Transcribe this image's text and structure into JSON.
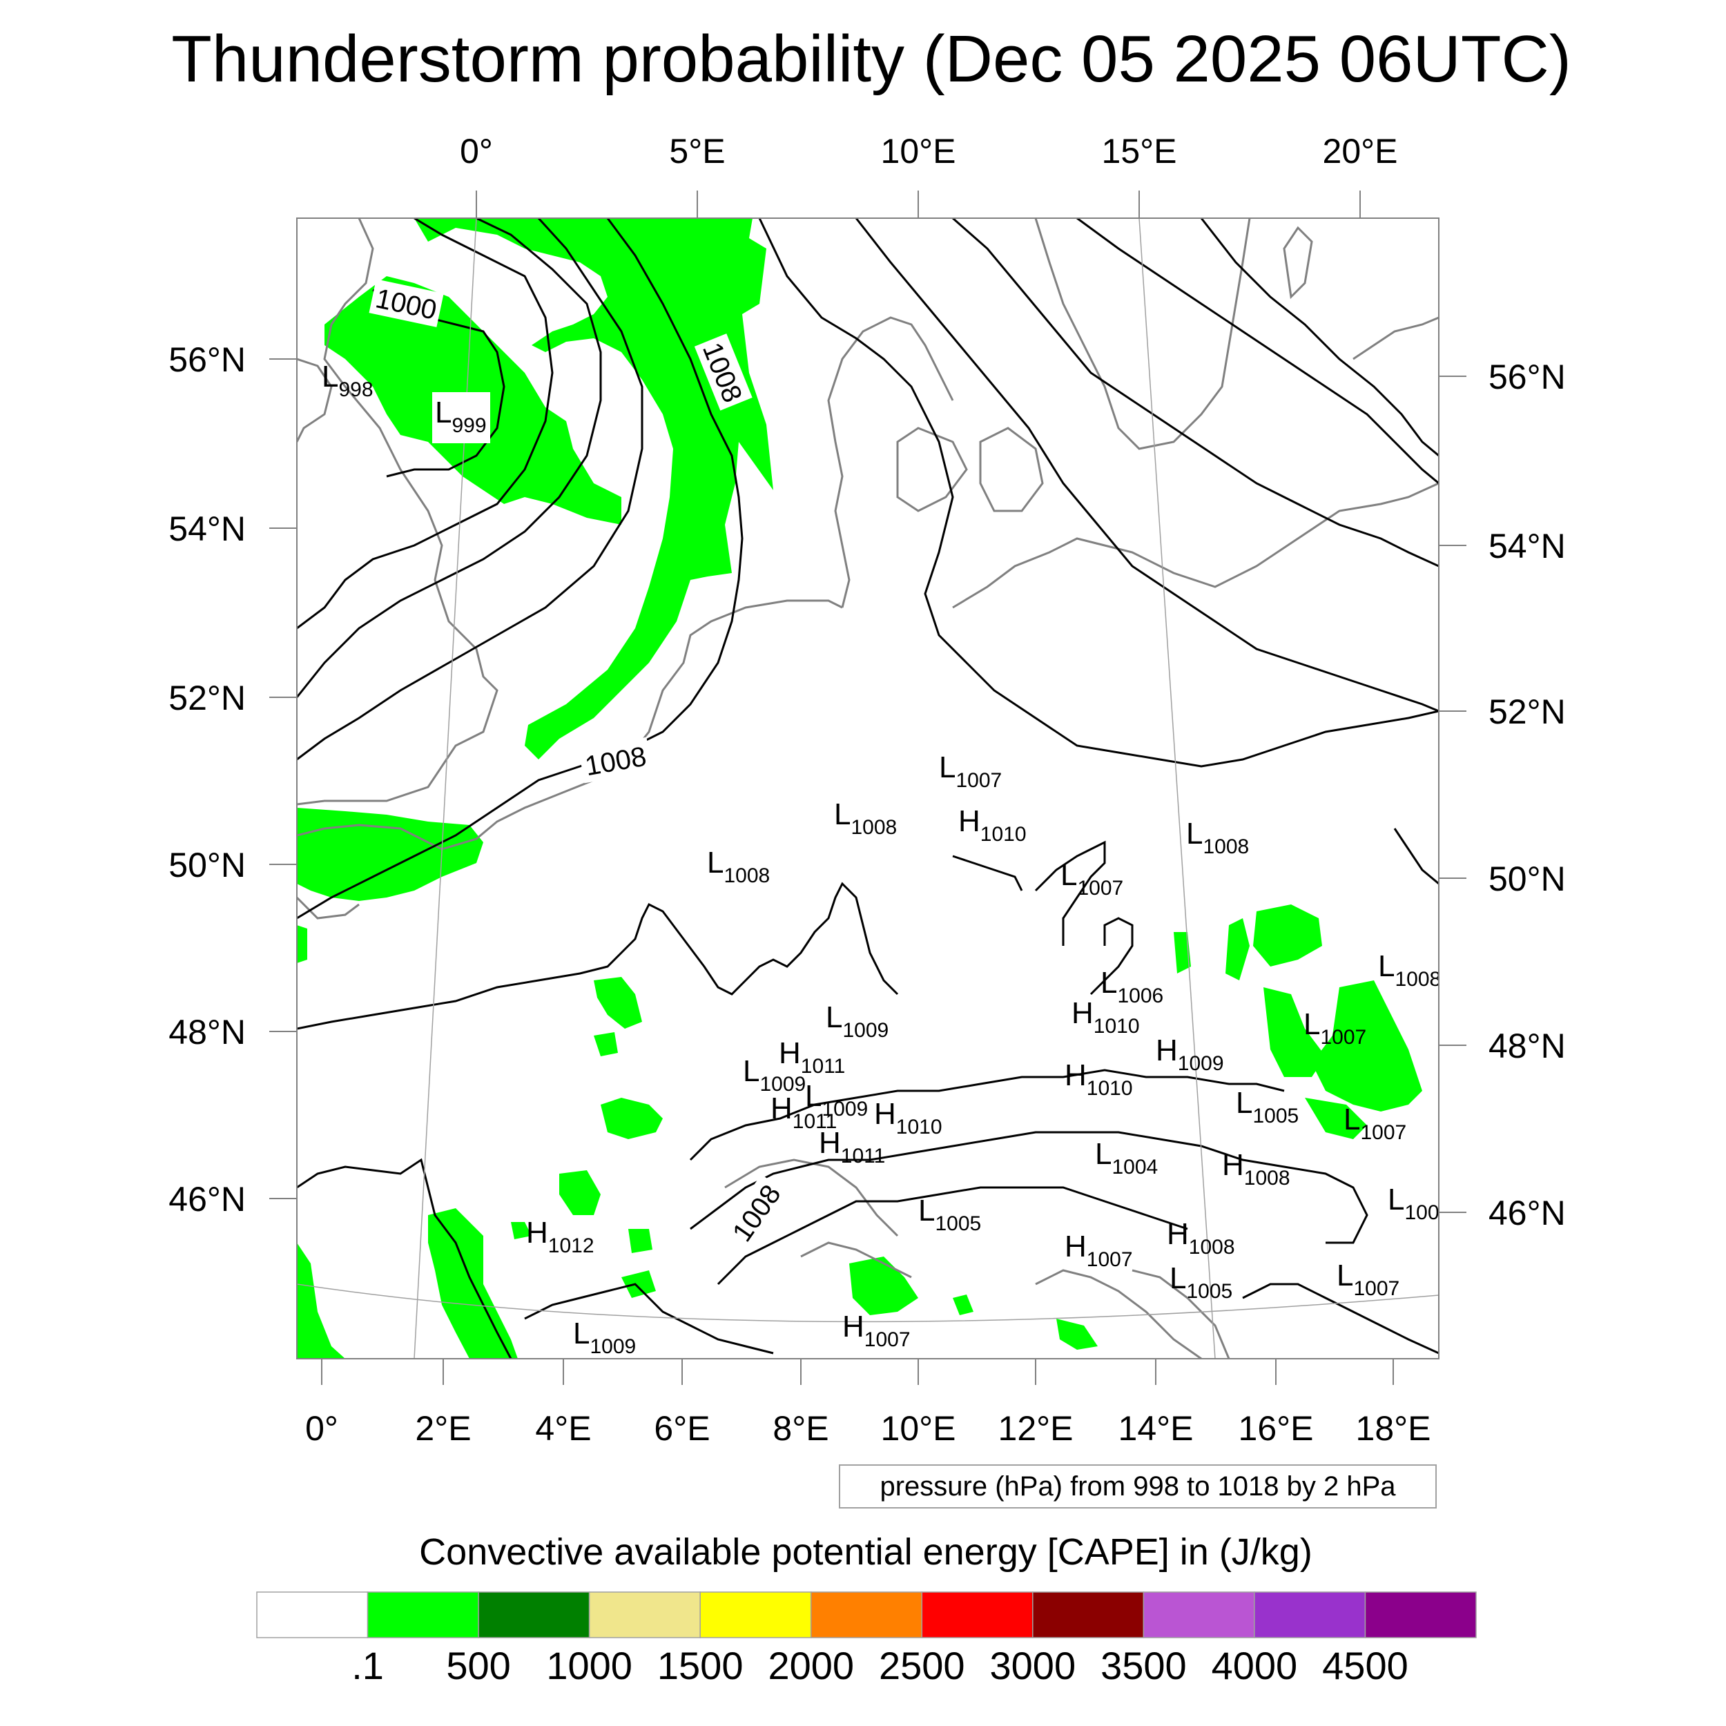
{
  "title": "Thunderstorm probability (Dec 05 2025 06UTC)",
  "map": {
    "top_lon_labels": [
      "0°",
      "5°E",
      "10°E",
      "15°E",
      "20°E"
    ],
    "bottom_lon_labels": [
      "0°",
      "2°E",
      "4°E",
      "6°E",
      "8°E",
      "10°E",
      "12°E",
      "14°E",
      "16°E",
      "18°E"
    ],
    "left_lat_labels": [
      "56°N",
      "54°N",
      "52°N",
      "50°N",
      "48°N",
      "46°N"
    ],
    "right_lat_labels": [
      "56°N",
      "54°N",
      "52°N",
      "50°N",
      "48°N",
      "46°N"
    ],
    "contour_labels": [
      "1000",
      "1008",
      "1008",
      "1008"
    ],
    "pressure_centers": [
      {
        "t": "L",
        "v": "998"
      },
      {
        "t": "L",
        "v": "999"
      },
      {
        "t": "L",
        "v": "1007"
      },
      {
        "t": "L",
        "v": "1008"
      },
      {
        "t": "H",
        "v": "1010"
      },
      {
        "t": "L",
        "v": "1008"
      },
      {
        "t": "L",
        "v": "1008"
      },
      {
        "t": "L",
        "v": "1007"
      },
      {
        "t": "L",
        "v": "1006"
      },
      {
        "t": "H",
        "v": "1010"
      },
      {
        "t": "L",
        "v": "1008"
      },
      {
        "t": "L",
        "v": "1009"
      },
      {
        "t": "H",
        "v": "1011"
      },
      {
        "t": "L",
        "v": "1009"
      },
      {
        "t": "L",
        "v": "1007"
      },
      {
        "t": "H",
        "v": "1009"
      },
      {
        "t": "H",
        "v": "1010"
      },
      {
        "t": "H",
        "v": "1011"
      },
      {
        "t": "L",
        "v": "1009"
      },
      {
        "t": "H",
        "v": "1010"
      },
      {
        "t": "L",
        "v": "1005"
      },
      {
        "t": "L",
        "v": "1007"
      },
      {
        "t": "H",
        "v": "1011"
      },
      {
        "t": "L",
        "v": "1004"
      },
      {
        "t": "H",
        "v": "1008"
      },
      {
        "t": "L",
        "v": "1005"
      },
      {
        "t": "H",
        "v": "1012"
      },
      {
        "t": "H",
        "v": "1007"
      },
      {
        "t": "H",
        "v": "1008"
      },
      {
        "t": "L",
        "v": "1005"
      },
      {
        "t": "L",
        "v": "1007"
      },
      {
        "t": "L",
        "v": "1009"
      },
      {
        "t": "H",
        "v": "1007"
      },
      {
        "t": "L",
        "v": "100"
      }
    ],
    "pressure_note": "pressure (hPa) from 998 to 1018 by 2 hPa"
  },
  "colorbar": {
    "title": "Convective available potential energy [CAPE] in (J/kg)",
    "colors": [
      "#ffffff",
      "#00ff00",
      "#008000",
      "#f0e68c",
      "#ffff00",
      "#ff8000",
      "#ff0000",
      "#8b0000",
      "#ba55d3",
      "#9932cc",
      "#8b008b"
    ],
    "tick_labels": [
      ".1",
      "500",
      "1000",
      "1500",
      "2000",
      "2500",
      "3000",
      "3500",
      "4000",
      "4500"
    ]
  },
  "colors": {
    "cape_fill": "#00ff00",
    "coastline": "#808080",
    "isobar": "#000000",
    "graticule": "#a0a0a0"
  }
}
